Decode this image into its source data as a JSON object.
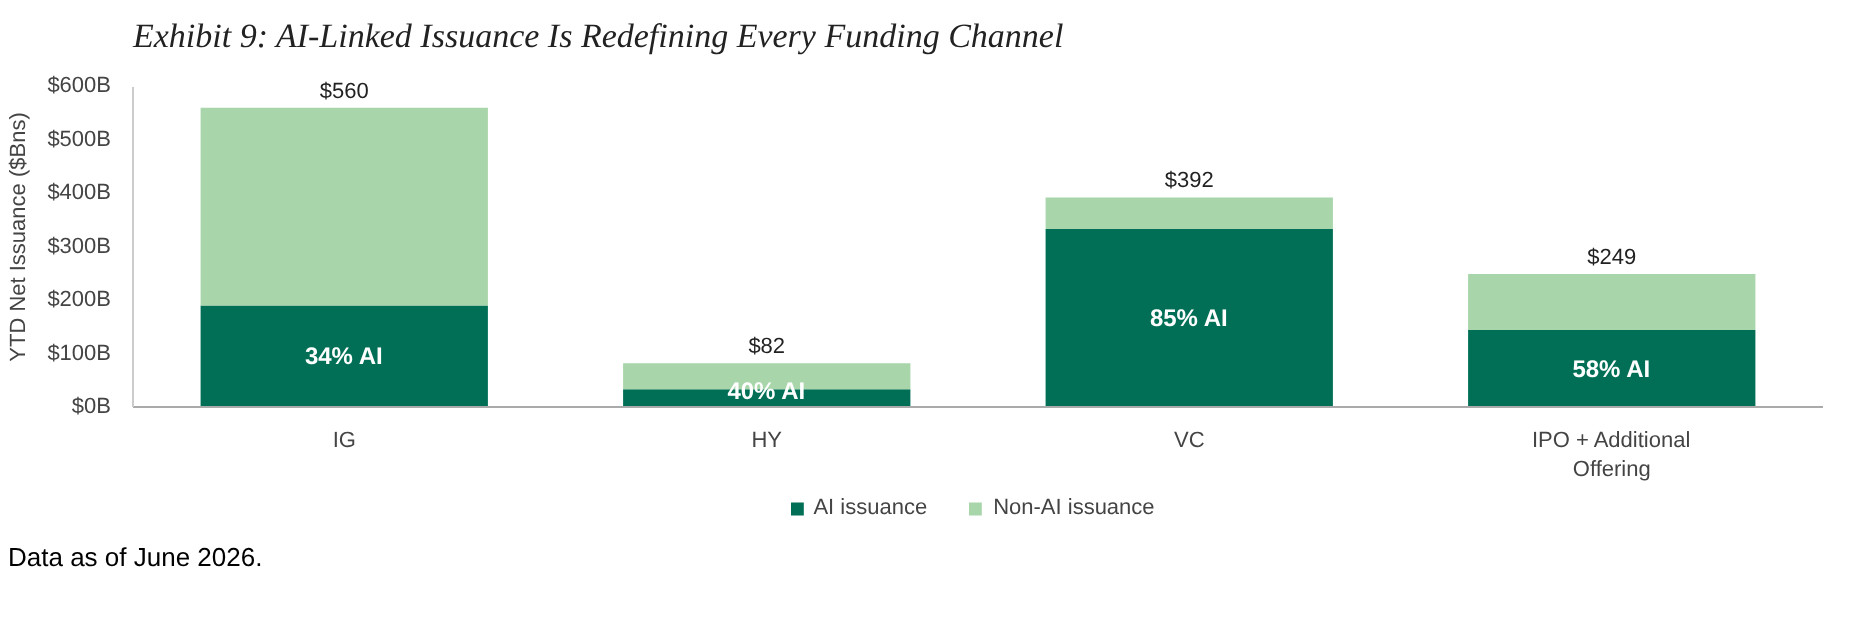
{
  "chart_data": {
    "type": "bar",
    "stacked": true,
    "title": "Exhibit 9: AI-Linked Issuance Is Redefining Every Funding Channel",
    "ylabel": "YTD Net Issuance ($Bns)",
    "categories": [
      "IG",
      "HY",
      "VC",
      "IPO + Additional Offering"
    ],
    "series": [
      {
        "name": "AI issuance",
        "color": "#006f55",
        "values": [
          190,
          33,
          333,
          144
        ]
      },
      {
        "name": "Non-AI issuance",
        "color": "#a8d5aa",
        "values": [
          370,
          49,
          59,
          105
        ]
      }
    ],
    "totals": [
      "$560",
      "$82",
      "$392",
      "$249"
    ],
    "ylim": [
      0,
      600
    ],
    "yticks": [
      {
        "value": 0,
        "label": "$0B"
      },
      {
        "value": 100,
        "label": "$100B"
      },
      {
        "value": 200,
        "label": "$200B"
      },
      {
        "value": 300,
        "label": "$300B"
      },
      {
        "value": 400,
        "label": "$400B"
      },
      {
        "value": 500,
        "label": "$500B"
      },
      {
        "value": 600,
        "label": "$600B"
      }
    ],
    "legend": "bottom",
    "grid": false,
    "annotations": [
      "34% AI",
      "40% AI",
      "85% AI",
      "58% AI",
      "Data as of June 2026."
    ]
  }
}
